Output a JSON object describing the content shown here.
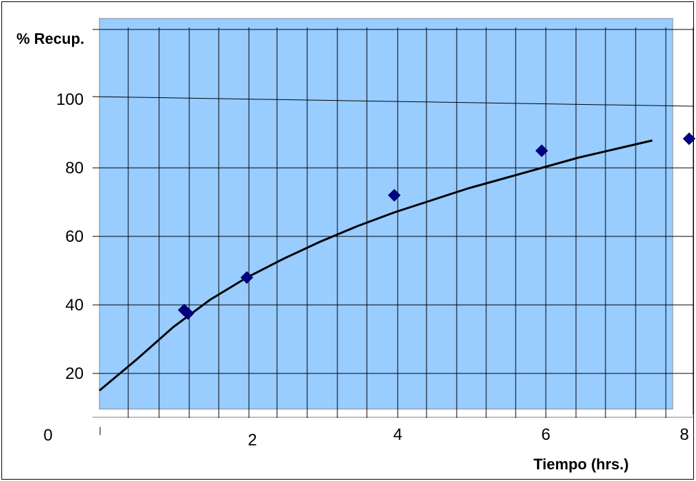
{
  "chart_data": {
    "type": "scatter",
    "ylabel": "% Recup.",
    "xlabel": "Tiempo (hrs.)",
    "xlim": [
      0,
      8
    ],
    "ylim": [
      0,
      110
    ],
    "x_ticks": [
      0,
      2,
      4,
      6,
      8
    ],
    "y_ticks": [
      20,
      40,
      60,
      80,
      100
    ],
    "grid": true,
    "colors": {
      "plot_area": "#99CCFF",
      "marker": "#000080",
      "fit_line": "#000000",
      "grid": "#000000"
    },
    "series": [
      {
        "type": "scatter",
        "marker": "diamond",
        "points": [
          {
            "x": 1.15,
            "y": 38.5
          },
          {
            "x": 1.2,
            "y": 37.5
          },
          {
            "x": 2.0,
            "y": 48.0
          },
          {
            "x": 4.0,
            "y": 72.0
          },
          {
            "x": 6.0,
            "y": 85.0
          },
          {
            "x": 8.0,
            "y": 88.5
          }
        ]
      },
      {
        "type": "line",
        "points": [
          {
            "x": 0.0,
            "y": 15.0
          },
          {
            "x": 0.5,
            "y": 24.0
          },
          {
            "x": 1.0,
            "y": 33.5
          },
          {
            "x": 1.5,
            "y": 41.5
          },
          {
            "x": 2.0,
            "y": 48.0
          },
          {
            "x": 2.5,
            "y": 53.5
          },
          {
            "x": 3.0,
            "y": 58.5
          },
          {
            "x": 3.5,
            "y": 63.0
          },
          {
            "x": 4.0,
            "y": 67.0
          },
          {
            "x": 4.5,
            "y": 70.5
          },
          {
            "x": 5.0,
            "y": 74.0
          },
          {
            "x": 5.5,
            "y": 77.0
          },
          {
            "x": 6.0,
            "y": 80.0
          },
          {
            "x": 6.5,
            "y": 83.0
          },
          {
            "x": 7.0,
            "y": 85.5
          },
          {
            "x": 7.5,
            "y": 88.0
          }
        ]
      }
    ]
  }
}
